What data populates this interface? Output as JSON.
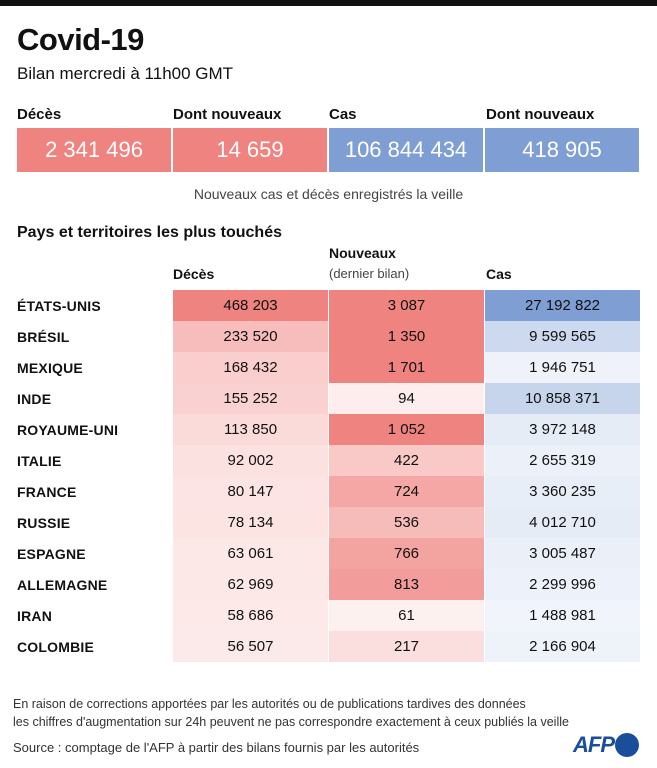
{
  "title": "Covid-19",
  "subtitle": "Bilan mercredi à 11h00 GMT",
  "summary": [
    {
      "label": "Décès",
      "value": "2 341 496",
      "color": "#ef8380"
    },
    {
      "label": "Dont nouveaux",
      "value": "14 659",
      "color": "#ef8380"
    },
    {
      "label": "Cas",
      "value": "106 844 434",
      "color": "#7f9ed3"
    },
    {
      "label": "Dont nouveaux",
      "value": "418 905",
      "color": "#7f9ed3"
    }
  ],
  "summary_note": "Nouveaux cas et décès enregistrés la veille",
  "section_title": "Pays et territoires les plus touchés",
  "chart_data": {
    "type": "heatmap",
    "columns": [
      {
        "label": "Décès",
        "sub": "",
        "color": "#ef8380"
      },
      {
        "label": "Nouveaux",
        "sub": "(dernier bilan)",
        "color": "#ef8380"
      },
      {
        "label": "Cas",
        "sub": "",
        "color": "#7f9ed3"
      }
    ],
    "rows": [
      {
        "country": "ÉTATS-UNIS",
        "deces": "468 203",
        "nouveaux": "3 087",
        "cas": "27 192 822"
      },
      {
        "country": "BRÉSIL",
        "deces": "233 520",
        "nouveaux": "1 350",
        "cas": "9 599 565"
      },
      {
        "country": "MEXIQUE",
        "deces": "168 432",
        "nouveaux": "1 701",
        "cas": "1 946 751"
      },
      {
        "country": "INDE",
        "deces": "155 252",
        "nouveaux": "94",
        "cas": "10 858 371"
      },
      {
        "country": "ROYAUME-UNI",
        "deces": "113 850",
        "nouveaux": "1 052",
        "cas": "3 972 148"
      },
      {
        "country": "ITALIE",
        "deces": "92 002",
        "nouveaux": "422",
        "cas": "2 655 319"
      },
      {
        "country": "FRANCE",
        "deces": "80 147",
        "nouveaux": "724",
        "cas": "3 360 235"
      },
      {
        "country": "RUSSIE",
        "deces": "78 134",
        "nouveaux": "536",
        "cas": "4 012 710"
      },
      {
        "country": "ESPAGNE",
        "deces": "63 061",
        "nouveaux": "766",
        "cas": "3 005 487"
      },
      {
        "country": "ALLEMAGNE",
        "deces": "62 969",
        "nouveaux": "813",
        "cas": "2 299 996"
      },
      {
        "country": "IRAN",
        "deces": "58 686",
        "nouveaux": "61",
        "cas": "1 488 981"
      },
      {
        "country": "COLOMBIE",
        "deces": "56 507",
        "nouveaux": "217",
        "cas": "2 166 904"
      }
    ]
  },
  "footnote": [
    "En raison de corrections apportées par les autorités ou de publications tardives des données",
    "les chiffres d'augmentation sur 24h peuvent ne pas correspondre exactement à ceux publiés la veille"
  ],
  "source": "Source : comptage de l'AFP à partir des bilans fournis par les autorités",
  "logo": "AFP"
}
